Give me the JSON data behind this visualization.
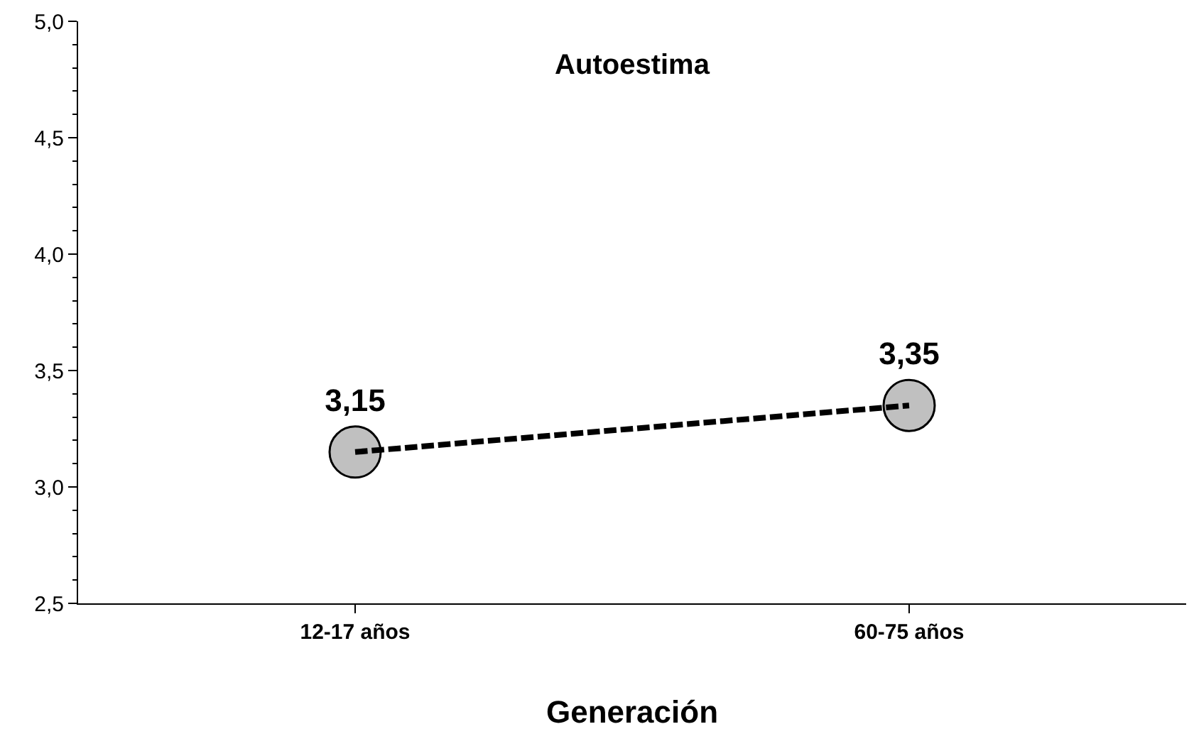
{
  "chart_data": {
    "type": "line",
    "title": "Autoestima",
    "xlabel": "Generación",
    "categories": [
      "12-17 años",
      "60-75 años"
    ],
    "series": [
      {
        "color": "#c0c0c0",
        "values": [
          3.15,
          3.35
        ],
        "value_labels": [
          "3,15",
          "3,35"
        ]
      }
    ],
    "ylim": [
      2.5,
      5.0
    ],
    "yticks": [
      {
        "value": 2.5,
        "label": "2,5"
      },
      {
        "value": 3.0,
        "label": "3,0"
      },
      {
        "value": 3.5,
        "label": "3,5"
      },
      {
        "value": 4.0,
        "label": "4,0"
      },
      {
        "value": 4.5,
        "label": "4,5"
      },
      {
        "value": 5.0,
        "label": "5,0"
      }
    ],
    "marker": "circle",
    "line_style": "dashed"
  }
}
